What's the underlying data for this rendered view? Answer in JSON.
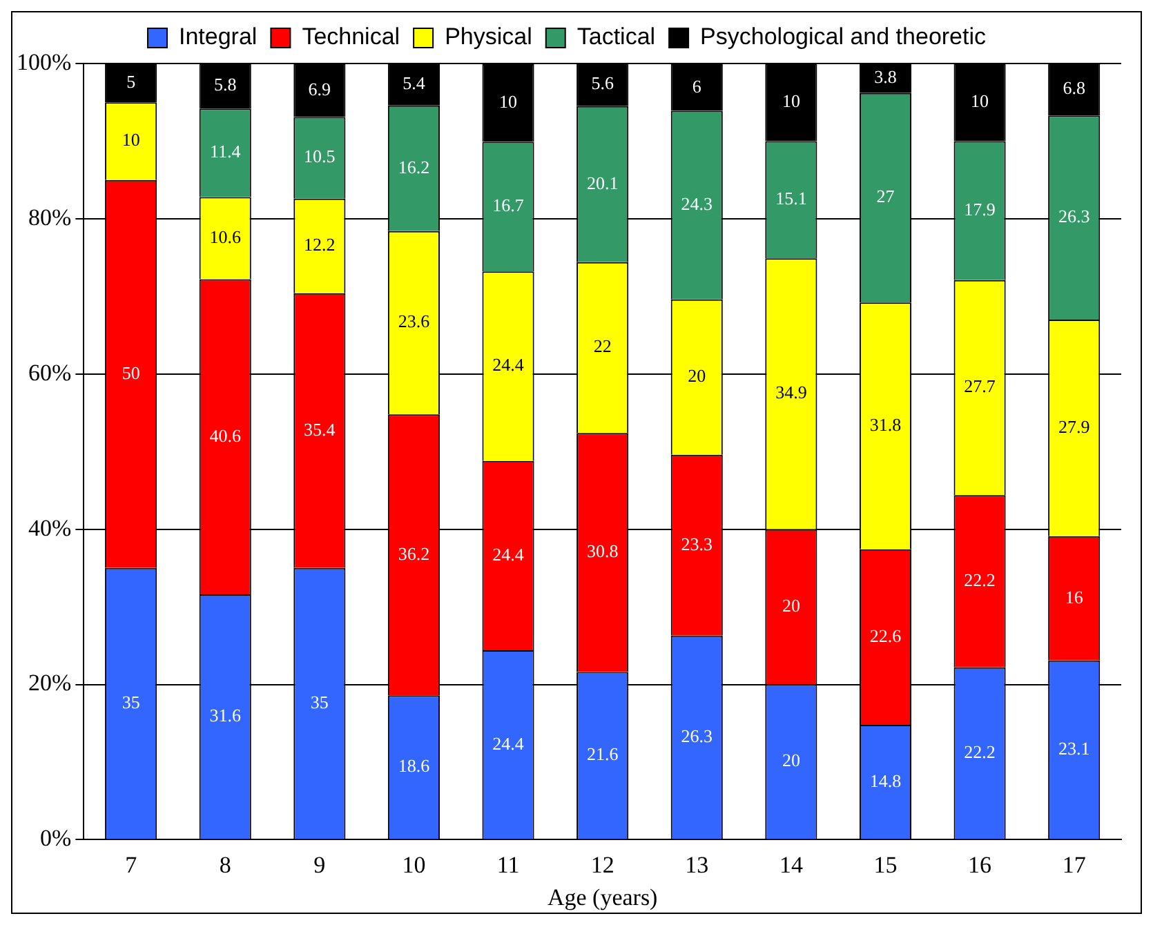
{
  "chart_data": {
    "type": "bar",
    "stacked": true,
    "xlabel": "Age (years)",
    "categories": [
      "7",
      "8",
      "9",
      "10",
      "11",
      "12",
      "13",
      "14",
      "15",
      "16",
      "17"
    ],
    "series": [
      {
        "name": "Integral",
        "color": "#3366ff",
        "values": [
          35,
          31.6,
          35,
          18.6,
          24.4,
          21.6,
          26.3,
          20,
          14.8,
          22.2,
          23.1
        ]
      },
      {
        "name": "Technical",
        "color": "#ff0000",
        "values": [
          50,
          40.6,
          35.4,
          36.2,
          24.4,
          30.8,
          23.3,
          20,
          22.6,
          22.2,
          16
        ]
      },
      {
        "name": "Physical",
        "color": "#ffff00",
        "values": [
          10,
          10.6,
          12.2,
          23.6,
          24.4,
          22,
          20,
          34.9,
          31.8,
          27.7,
          27.9
        ]
      },
      {
        "name": "Tactical",
        "color": "#339966",
        "values": [
          null,
          11.4,
          10.5,
          16.2,
          16.7,
          20.1,
          24.3,
          15.1,
          27,
          17.9,
          26.3
        ]
      },
      {
        "name": "Psychological and theoretic",
        "color": "#000000",
        "values": [
          5,
          5.8,
          6.9,
          5.4,
          10,
          5.6,
          6,
          10,
          3.8,
          10,
          6.8
        ]
      }
    ],
    "ylim": [
      0,
      100
    ],
    "yticks": [
      {
        "value": 0,
        "label": "0%"
      },
      {
        "value": 20,
        "label": "20%"
      },
      {
        "value": 40,
        "label": "40%"
      },
      {
        "value": 60,
        "label": "60%"
      },
      {
        "value": 80,
        "label": "80%"
      },
      {
        "value": 100,
        "label": "100%"
      }
    ],
    "grid": "y",
    "legend": "top",
    "data_labels": true
  }
}
